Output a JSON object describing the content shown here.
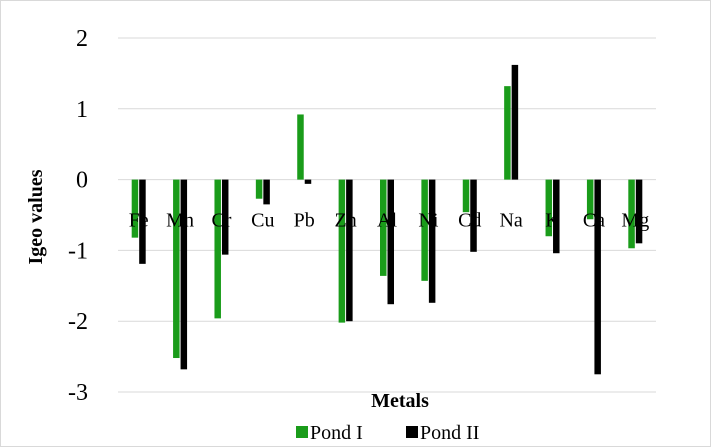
{
  "chart_data": {
    "type": "bar",
    "title": "",
    "xlabel": "Metals",
    "ylabel": "Igeo values",
    "ylim": [
      -3,
      2
    ],
    "yticks": [
      2,
      1,
      0,
      -1,
      -2,
      -3
    ],
    "grid": true,
    "legend_position": "bottom",
    "categories": [
      "Fe",
      "Mn",
      "Cr",
      "Cu",
      "Pb",
      "Zn",
      "Al",
      "Ni",
      "Cd",
      "Na",
      "K",
      "Ca",
      "Mg"
    ],
    "series": [
      {
        "name": "Pond I",
        "color": "#1a9c1a",
        "values": [
          -0.82,
          -2.52,
          -1.96,
          -0.27,
          0.92,
          -2.02,
          -1.36,
          -1.43,
          -0.46,
          1.32,
          -0.8,
          -0.56,
          -0.97
        ]
      },
      {
        "name": "Pond II",
        "color": "#000000",
        "values": [
          -1.19,
          -2.68,
          -1.06,
          -0.35,
          -0.06,
          -2.0,
          -1.76,
          -1.74,
          -1.02,
          1.62,
          -1.04,
          -2.75,
          -0.9
        ]
      }
    ]
  }
}
